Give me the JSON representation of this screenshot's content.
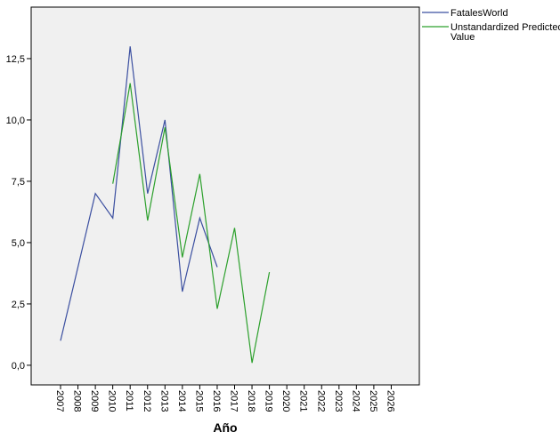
{
  "chart_data": {
    "type": "line",
    "xlabel": "Año",
    "ylabel": "",
    "ylim": [
      -0.8,
      14.6
    ],
    "y_ticks": [
      0,
      2.5,
      5,
      7.5,
      10,
      12.5
    ],
    "y_tick_labels": [
      "0,0",
      "2,5",
      "5,0",
      "7,5",
      "10,0",
      "12,5"
    ],
    "categories": [
      "2007",
      "2008",
      "2009",
      "2010",
      "2011",
      "2012",
      "2013",
      "2014",
      "2015",
      "2016",
      "2017",
      "2018",
      "2019",
      "2020",
      "2021",
      "2022",
      "2023",
      "2024",
      "2025",
      "2026"
    ],
    "grid": false,
    "legend_position": "top-right outside",
    "series": [
      {
        "name": "FatalesWorld",
        "color": "#3b4fa0",
        "values": [
          1,
          null,
          7,
          6,
          13,
          7,
          10,
          3,
          6,
          4,
          null,
          null,
          null,
          null,
          null,
          null,
          null,
          null,
          null,
          null
        ],
        "segments": [
          [
            0,
            2
          ],
          [
            2,
            3
          ],
          [
            3,
            4
          ],
          [
            4,
            5
          ],
          [
            5,
            6
          ],
          [
            6,
            7
          ],
          [
            7,
            8
          ],
          [
            8,
            9
          ]
        ]
      },
      {
        "name": "Unstandardized Predicted\nValue",
        "legend_lines": [
          "Unstandardized Predicted",
          "Value"
        ],
        "color": "#2ca02c",
        "values": [
          null,
          null,
          null,
          7.4,
          11.5,
          5.9,
          9.7,
          4.4,
          7.8,
          2.3,
          5.6,
          0.1,
          3.8,
          null,
          null,
          null,
          null,
          null,
          null,
          null
        ]
      }
    ]
  }
}
